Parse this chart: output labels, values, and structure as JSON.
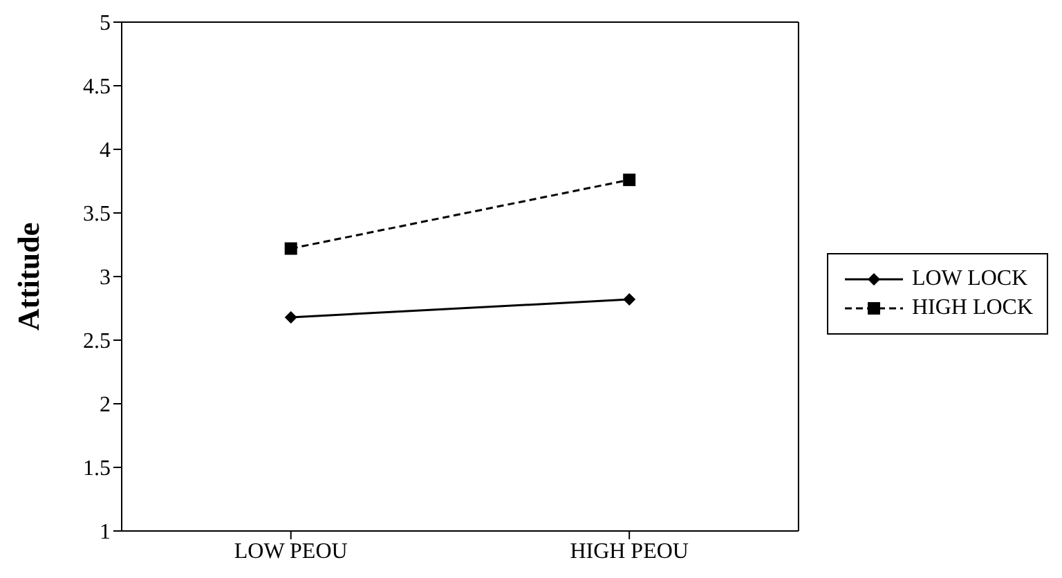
{
  "chart_data": {
    "type": "line",
    "ylabel": "Attitude",
    "categories": [
      "LOW PEOU",
      "HIGH PEOU"
    ],
    "series": [
      {
        "name": "LOW LOCK",
        "color": "#000000",
        "values": [
          2.68,
          2.82
        ],
        "marker": "diamond",
        "line_style": "solid"
      },
      {
        "name": "HIGH LOCK",
        "color": "#000000",
        "values": [
          3.22,
          3.76
        ],
        "marker": "square",
        "line_style": "dashed"
      }
    ],
    "ylim": [
      1,
      5
    ],
    "yticks": [
      1,
      1.5,
      2,
      2.5,
      3,
      3.5,
      4,
      4.5,
      5
    ],
    "grid": false,
    "legend": "right"
  }
}
